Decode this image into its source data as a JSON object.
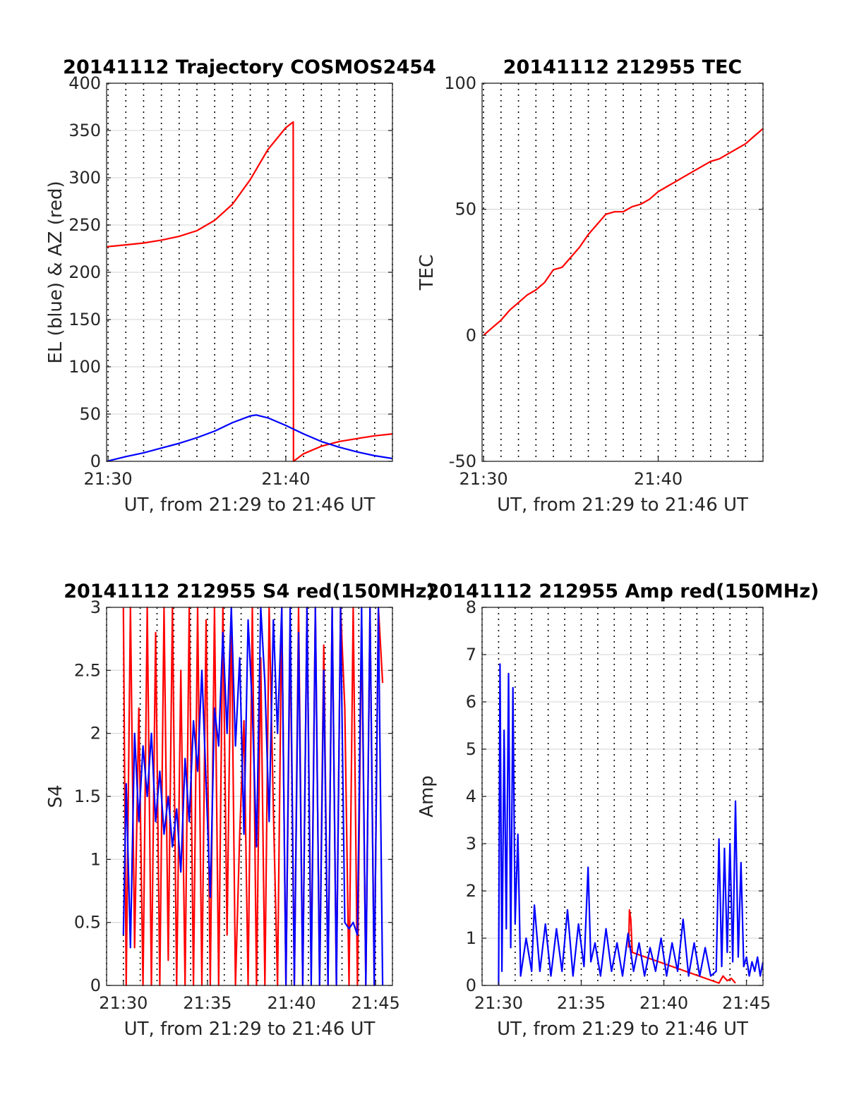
{
  "chart_data": [
    {
      "type": "line",
      "title": "20141112 Trajectory COSMOS2454",
      "xlabel": "UT, from 21:29 to 21:46 UT",
      "ylabel": "EL (blue) & AZ (red)",
      "x_unit": "UT time",
      "xlim": [
        "21:29:55",
        "21:46:00"
      ],
      "ylim": [
        0,
        400
      ],
      "xticks": [
        "21:30",
        "21:40"
      ],
      "yticks": [
        "0",
        "50",
        "100",
        "150",
        "200",
        "250",
        "300",
        "350",
        "400"
      ],
      "minute_gridlines": true,
      "series": [
        {
          "name": "AZ",
          "color": "#ff0000",
          "x": [
            "21:29:55",
            "21:31:00",
            "21:32:00",
            "21:33:00",
            "21:34:00",
            "21:35:00",
            "21:36:00",
            "21:37:00",
            "21:38:00",
            "21:39:00",
            "21:40:00",
            "21:40:25",
            "21:40:26",
            "21:41:00",
            "21:42:00",
            "21:43:00",
            "21:44:00",
            "21:45:00",
            "21:46:00"
          ],
          "y": [
            227,
            229,
            231,
            234,
            238,
            244,
            255,
            272,
            298,
            330,
            353,
            359,
            0,
            8,
            16,
            21,
            24,
            27,
            29
          ]
        },
        {
          "name": "EL",
          "color": "#0000ff",
          "x": [
            "21:29:55",
            "21:31:00",
            "21:32:00",
            "21:33:00",
            "21:34:00",
            "21:35:00",
            "21:36:00",
            "21:37:00",
            "21:38:00",
            "21:38:20",
            "21:39:00",
            "21:40:00",
            "21:41:00",
            "21:42:00",
            "21:43:00",
            "21:44:00",
            "21:45:00",
            "21:46:00"
          ],
          "y": [
            0,
            5,
            9,
            14,
            19,
            25,
            32,
            41,
            48,
            49,
            46,
            38,
            29,
            21,
            15,
            10,
            6,
            3
          ]
        }
      ]
    },
    {
      "type": "line",
      "title": "20141112 212955 TEC",
      "xlabel": "UT, from 21:29 to 21:46 UT",
      "ylabel": "TEC",
      "x_unit": "UT time",
      "xlim": [
        "21:29:55",
        "21:46:00"
      ],
      "ylim": [
        -50,
        100
      ],
      "xticks": [
        "21:30",
        "21:40"
      ],
      "yticks": [
        "-50",
        "0",
        "50",
        "100"
      ],
      "minute_gridlines": true,
      "series": [
        {
          "name": "TEC",
          "color": "#ff0000",
          "x": [
            "21:30:00",
            "21:30:30",
            "21:31:00",
            "21:31:30",
            "21:32:00",
            "21:32:30",
            "21:33:00",
            "21:33:30",
            "21:34:00",
            "21:34:30",
            "21:35:00",
            "21:35:30",
            "21:36:00",
            "21:36:30",
            "21:37:00",
            "21:37:30",
            "21:38:00",
            "21:38:30",
            "21:39:00",
            "21:39:30",
            "21:40:00",
            "21:40:30",
            "21:41:00",
            "21:41:30",
            "21:42:00",
            "21:42:30",
            "21:43:00",
            "21:43:30",
            "21:44:00",
            "21:44:30",
            "21:45:00",
            "21:45:30",
            "21:46:00"
          ],
          "y": [
            0,
            3,
            6,
            10,
            13,
            16,
            18,
            21,
            26,
            27,
            31,
            35,
            40,
            44,
            48,
            49,
            49,
            51,
            52,
            54,
            57,
            59,
            61,
            63,
            65,
            67,
            69,
            70,
            72,
            74,
            76,
            79,
            82
          ]
        }
      ]
    },
    {
      "type": "line",
      "title": "20141112 212955 S4 red(150MHz)",
      "xlabel": "UT, from 21:29 to 21:46 UT",
      "ylabel": "S4",
      "x_unit": "UT time",
      "xlim": [
        "21:29:00",
        "21:46:00"
      ],
      "ylim": [
        0,
        3
      ],
      "xticks": [
        "21:30",
        "21:35",
        "21:40",
        "21:45"
      ],
      "yticks": [
        "0",
        "0.5",
        "1",
        "1.5",
        "2",
        "2.5",
        "3"
      ],
      "minute_gridlines": true,
      "series": [
        {
          "name": "S4 red",
          "color": "#ff0000",
          "x": [
            "21:30:00",
            "21:30:10",
            "21:30:25",
            "21:30:40",
            "21:30:55",
            "21:31:10",
            "21:31:25",
            "21:31:40",
            "21:31:55",
            "21:32:10",
            "21:32:25",
            "21:32:40",
            "21:32:55",
            "21:33:10",
            "21:33:25",
            "21:33:40",
            "21:33:55",
            "21:34:10",
            "21:34:25",
            "21:34:40",
            "21:34:55",
            "21:35:10",
            "21:35:25",
            "21:35:40",
            "21:35:55",
            "21:36:10",
            "21:36:25",
            "21:36:40",
            "21:36:55",
            "21:37:10",
            "21:37:25",
            "21:37:40",
            "21:37:55",
            "21:38:10",
            "21:38:25",
            "21:38:40",
            "21:38:55",
            "21:39:10",
            "21:39:25",
            "21:39:40",
            "21:39:55",
            "21:40:10",
            "21:40:25",
            "21:40:40",
            "21:40:55",
            "21:41:10",
            "21:41:25",
            "21:41:40",
            "21:41:55",
            "21:42:10",
            "21:42:25",
            "21:42:40",
            "21:42:55",
            "21:43:10",
            "21:43:25",
            "21:43:40",
            "21:43:55",
            "21:44:10",
            "21:44:25",
            "21:44:40",
            "21:44:55",
            "21:45:10",
            "21:45:25"
          ],
          "y": [
            3,
            0,
            3,
            0.3,
            2.2,
            0,
            3,
            0,
            2.8,
            0,
            3,
            0.2,
            3,
            0,
            2.5,
            0,
            3,
            0,
            3,
            0,
            2.9,
            0,
            3,
            0,
            3,
            0.4,
            3,
            0,
            1.2,
            2.1,
            0,
            3,
            0,
            2.6,
            0,
            3,
            1.4,
            0,
            3,
            0,
            2.8,
            0,
            3,
            0,
            3,
            0.1,
            3,
            0,
            2.7,
            0,
            3,
            0,
            3,
            2.2,
            0,
            3,
            0,
            2.9,
            0,
            3,
            0,
            3,
            2.4
          ]
        },
        {
          "name": "S4 blue",
          "color": "#0000ff",
          "x": [
            "21:30:00",
            "21:30:10",
            "21:30:25",
            "21:30:40",
            "21:30:55",
            "21:31:10",
            "21:31:25",
            "21:31:40",
            "21:31:55",
            "21:32:10",
            "21:32:25",
            "21:32:40",
            "21:32:55",
            "21:33:10",
            "21:33:25",
            "21:33:40",
            "21:33:55",
            "21:34:10",
            "21:34:25",
            "21:34:40",
            "21:34:55",
            "21:35:10",
            "21:35:25",
            "21:35:40",
            "21:35:55",
            "21:36:10",
            "21:36:25",
            "21:36:40",
            "21:36:55",
            "21:37:10",
            "21:37:25",
            "21:37:40",
            "21:37:55",
            "21:38:10",
            "21:38:25",
            "21:38:40",
            "21:38:55",
            "21:39:10",
            "21:39:25",
            "21:39:40",
            "21:39:55",
            "21:40:10",
            "21:40:25",
            "21:40:40",
            "21:40:55",
            "21:41:10",
            "21:41:25",
            "21:41:40",
            "21:41:55",
            "21:42:10",
            "21:42:25",
            "21:42:40",
            "21:42:55",
            "21:43:10",
            "21:43:25",
            "21:43:40",
            "21:43:55",
            "21:44:10",
            "21:44:25",
            "21:44:40",
            "21:44:55",
            "21:45:10",
            "21:45:25"
          ],
          "y": [
            0.4,
            1.6,
            0.3,
            2.0,
            1.3,
            1.9,
            1.5,
            2.0,
            1.3,
            1.7,
            1.2,
            1.5,
            1.1,
            1.4,
            0.9,
            1.8,
            1.3,
            2.1,
            1.7,
            2.5,
            1.6,
            0.7,
            2.2,
            1.9,
            2.8,
            2.0,
            3,
            1.9,
            2.6,
            1.2,
            2.9,
            2.2,
            1.1,
            3,
            2.4,
            1.3,
            2.9,
            2.0,
            3,
            0,
            3,
            0,
            2.8,
            0,
            3,
            0,
            3,
            0,
            2.5,
            0,
            3,
            0,
            3,
            0.5,
            0.45,
            0.5,
            0.4,
            3,
            0,
            3,
            0,
            3,
            0
          ]
        }
      ]
    },
    {
      "type": "line",
      "title": "20141112 212955 Amp red(150MHz)",
      "xlabel": "UT, from 21:29 to 21:46 UT",
      "ylabel": "Amp",
      "x_unit": "UT time",
      "xlim": [
        "21:29:00",
        "21:46:00"
      ],
      "ylim": [
        0,
        8
      ],
      "xticks": [
        "21:30",
        "21:35",
        "21:40",
        "21:45"
      ],
      "yticks": [
        "0",
        "1",
        "2",
        "3",
        "4",
        "5",
        "6",
        "7",
        "8"
      ],
      "minute_gridlines": true,
      "series": [
        {
          "name": "Amp red",
          "color": "#ff0000",
          "x": [
            "21:37:52",
            "21:37:55",
            "21:38:00",
            "21:38:05",
            "21:43:20",
            "21:43:35",
            "21:43:50",
            "21:44:05",
            "21:44:20"
          ],
          "y": [
            0.8,
            1.6,
            1.4,
            0.7,
            0.05,
            0.2,
            0.1,
            0.15,
            0.05
          ]
        },
        {
          "name": "Amp blue",
          "color": "#0000ff",
          "x": [
            "21:30:00",
            "21:30:05",
            "21:30:12",
            "21:30:20",
            "21:30:28",
            "21:30:36",
            "21:30:44",
            "21:30:52",
            "21:31:00",
            "21:31:10",
            "21:31:20",
            "21:31:40",
            "21:32:00",
            "21:32:10",
            "21:32:30",
            "21:32:50",
            "21:33:10",
            "21:33:30",
            "21:33:50",
            "21:34:10",
            "21:34:30",
            "21:34:50",
            "21:35:10",
            "21:35:25",
            "21:35:35",
            "21:35:50",
            "21:36:10",
            "21:36:30",
            "21:36:50",
            "21:37:10",
            "21:37:30",
            "21:37:50",
            "21:38:10",
            "21:38:30",
            "21:38:50",
            "21:39:10",
            "21:39:30",
            "21:39:50",
            "21:40:10",
            "21:40:30",
            "21:40:50",
            "21:41:10",
            "21:41:30",
            "21:41:50",
            "21:42:10",
            "21:42:30",
            "21:42:50",
            "21:43:10",
            "21:43:20",
            "21:43:30",
            "21:43:40",
            "21:43:50",
            "21:44:00",
            "21:44:10",
            "21:44:20",
            "21:44:30",
            "21:44:40",
            "21:44:50",
            "21:45:00",
            "21:45:10",
            "21:45:20",
            "21:45:30",
            "21:45:40",
            "21:45:50",
            "21:46:00"
          ],
          "y": [
            0,
            6.8,
            0.3,
            5.4,
            1.2,
            6.6,
            0.8,
            6.3,
            1.3,
            3.2,
            0.2,
            1.0,
            0.3,
            1.7,
            0.3,
            1.3,
            0.2,
            1.2,
            0.3,
            1.6,
            0.2,
            1.3,
            0.4,
            2.5,
            0.5,
            0.9,
            0.2,
            1.2,
            0.3,
            0.9,
            0.2,
            1.1,
            0.3,
            0.9,
            0.2,
            0.8,
            0.3,
            1.0,
            0.2,
            0.9,
            0.3,
            1.4,
            0.2,
            0.9,
            0.2,
            0.8,
            0.2,
            0.3,
            3.1,
            0.4,
            2.9,
            0.7,
            3.0,
            0.5,
            3.9,
            0.6,
            2.6,
            0.4,
            0.6,
            0.2,
            0.5,
            0.3,
            0.6,
            0.2,
            0.5
          ]
        }
      ]
    }
  ]
}
